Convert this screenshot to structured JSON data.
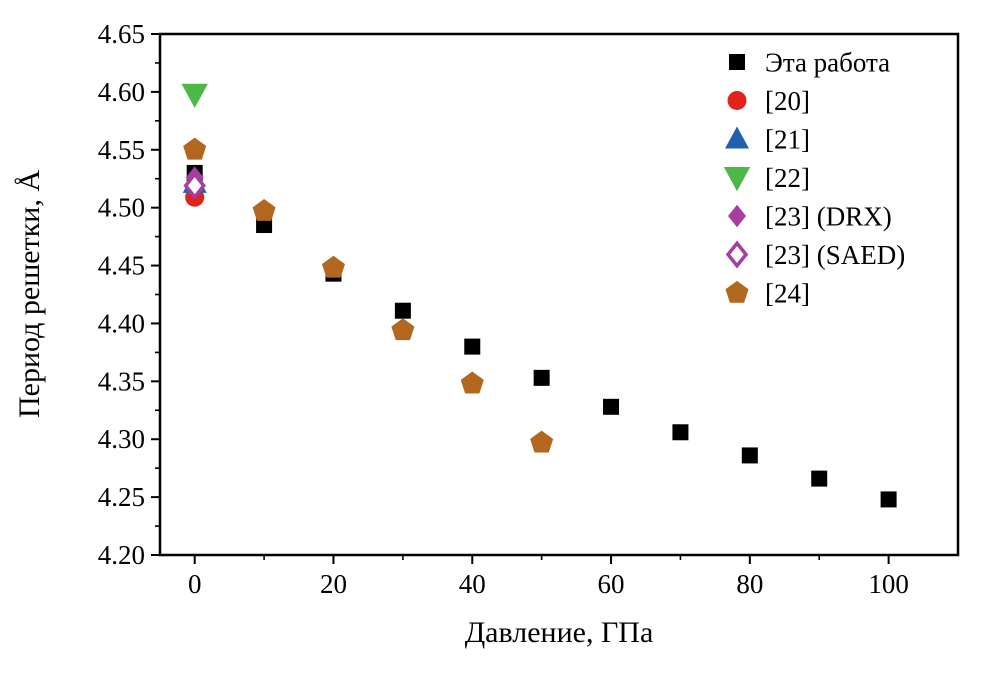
{
  "figure": {
    "background": "#ffffff"
  },
  "chart_data": {
    "type": "scatter",
    "title": "",
    "xlabel": "Давление, ГПа",
    "ylabel": "Период решетки, Å",
    "xlim": [
      -5,
      110
    ],
    "ylim": [
      4.2,
      4.65
    ],
    "x_ticks": [
      0,
      20,
      40,
      60,
      80,
      100
    ],
    "x_tick_labels": [
      "0",
      "20",
      "40",
      "60",
      "80",
      "100"
    ],
    "x_minor_ticks": [
      10,
      30,
      50,
      70,
      90
    ],
    "y_ticks": [
      4.2,
      4.25,
      4.3,
      4.35,
      4.4,
      4.45,
      4.5,
      4.55,
      4.6,
      4.65
    ],
    "y_tick_labels": [
      "4.20",
      "4.25",
      "4.30",
      "4.35",
      "4.40",
      "4.45",
      "4.50",
      "4.55",
      "4.60",
      "4.65"
    ],
    "y_minor_ticks": [
      4.225,
      4.275,
      4.325,
      4.375,
      4.425,
      4.475,
      4.525,
      4.575,
      4.625
    ],
    "grid": false,
    "legend_position": "top-right-inside",
    "series": [
      {
        "name": "Эта работа",
        "marker": "square",
        "color": "#000000",
        "size": 8,
        "points": [
          [
            0,
            4.53
          ],
          [
            10,
            4.485
          ],
          [
            20,
            4.443
          ],
          [
            30,
            4.411
          ],
          [
            40,
            4.38
          ],
          [
            50,
            4.353
          ],
          [
            60,
            4.328
          ],
          [
            70,
            4.306
          ],
          [
            80,
            4.286
          ],
          [
            90,
            4.266
          ],
          [
            100,
            4.248
          ]
        ]
      },
      {
        "name": "[20]",
        "marker": "circle",
        "color": "#e2231a",
        "size": 9.5,
        "points": [
          [
            0,
            4.509
          ]
        ]
      },
      {
        "name": "[21]",
        "marker": "triangle-up",
        "color": "#2061ae",
        "size": 10,
        "points": [
          [
            0,
            4.521
          ]
        ]
      },
      {
        "name": "[22]",
        "marker": "triangle-down",
        "color": "#4bb848",
        "size": 11,
        "points": [
          [
            0,
            4.598
          ]
        ]
      },
      {
        "name": "[23] (DRX)",
        "marker": "diamond",
        "color": "#a63d9f",
        "size": 9,
        "points": [
          [
            0,
            4.526
          ]
        ]
      },
      {
        "name": "[23] (SAED)",
        "marker": "diamond-open",
        "color": "#a63d9f",
        "size": 9,
        "points": [
          [
            0,
            4.519
          ]
        ]
      },
      {
        "name": "[24]",
        "marker": "pentagon",
        "color": "#b2661e",
        "size": 11,
        "points": [
          [
            0,
            4.55
          ],
          [
            10,
            4.497
          ],
          [
            20,
            4.448
          ],
          [
            30,
            4.394
          ],
          [
            40,
            4.348
          ],
          [
            50,
            4.297
          ]
        ]
      }
    ]
  }
}
